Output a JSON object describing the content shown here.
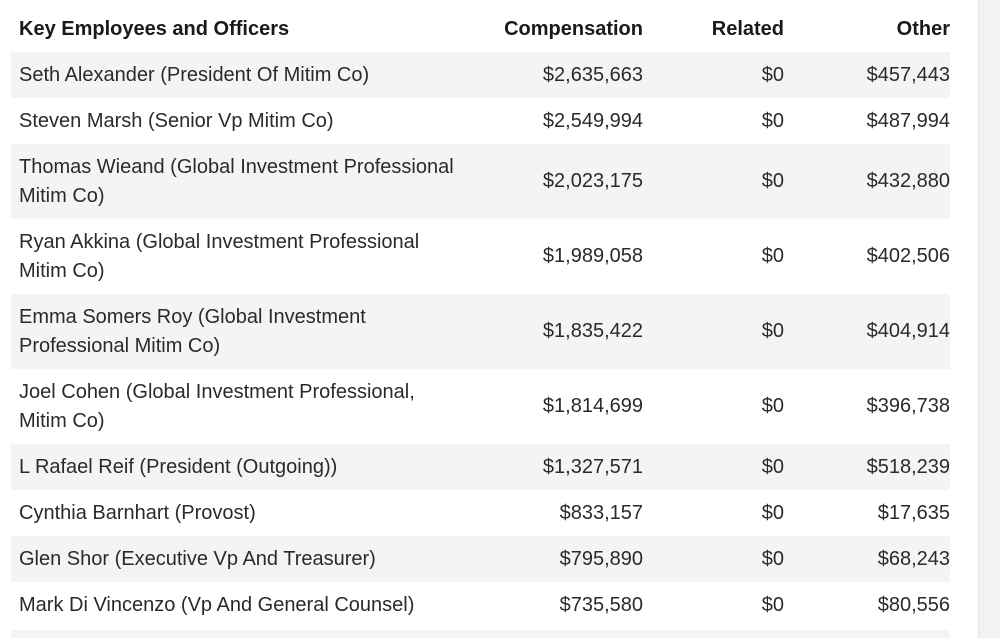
{
  "table": {
    "headers": {
      "name": "Key Employees and Officers",
      "compensation": "Compensation",
      "related": "Related",
      "other": "Other"
    },
    "rows": [
      {
        "name": "Seth Alexander (President Of Mitim Co)",
        "compensation": "$2,635,663",
        "related": "$0",
        "other": "$457,443"
      },
      {
        "name": "Steven Marsh (Senior Vp Mitim Co)",
        "compensation": "$2,549,994",
        "related": "$0",
        "other": "$487,994"
      },
      {
        "name": "Thomas Wieand (Global Investment Professional Mitim Co)",
        "compensation": "$2,023,175",
        "related": "$0",
        "other": "$432,880"
      },
      {
        "name": "Ryan Akkina (Global Investment Professional Mitim Co)",
        "compensation": "$1,989,058",
        "related": "$0",
        "other": "$402,506"
      },
      {
        "name": "Emma Somers Roy (Global Investment Professional Mitim Co)",
        "compensation": "$1,835,422",
        "related": "$0",
        "other": "$404,914"
      },
      {
        "name": "Joel Cohen (Global Investment Professional, Mitim Co)",
        "compensation": "$1,814,699",
        "related": "$0",
        "other": "$396,738"
      },
      {
        "name": "L Rafael Reif (President (Outgoing))",
        "compensation": "$1,327,571",
        "related": "$0",
        "other": "$518,239"
      },
      {
        "name": "Cynthia Barnhart (Provost)",
        "compensation": "$833,157",
        "related": "$0",
        "other": "$17,635"
      },
      {
        "name": "Glen Shor (Executive Vp And Treasurer)",
        "compensation": "$795,890",
        "related": "$0",
        "other": "$68,243"
      },
      {
        "name": "Mark Di Vincenzo (Vp And General Counsel)",
        "compensation": "$735,580",
        "related": "$0",
        "other": "$80,556"
      }
    ]
  }
}
